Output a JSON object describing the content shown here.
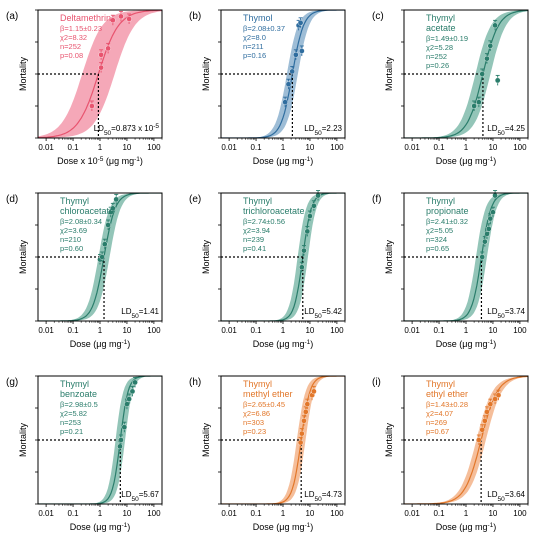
{
  "chart_data": [
    {
      "type": "scatter",
      "panel_label": "(a)",
      "name": "Deltamethrin",
      "color": "#e8546f",
      "band_color": "#f28ba0",
      "stats": [
        "β=1.15±0.23",
        "χ2=8.32",
        "n=252",
        "p=0.08"
      ],
      "ld50_label": "LD50=0.873 x 10-5",
      "ld50_value": 0.873,
      "slope": 1.15,
      "band_lo": [
        10,
        3
      ],
      "band_hi": [
        45,
        0.08
      ],
      "points": [
        [
          0.5,
          0.25
        ],
        [
          1.1,
          0.55
        ],
        [
          1.1,
          0.65
        ],
        [
          2,
          0.7
        ],
        [
          3,
          0.92
        ],
        [
          6,
          0.95
        ],
        [
          12,
          0.93
        ]
      ],
      "xlabel": "Dose x 10-5 (μg mg-1)",
      "ylabel": "Mortality",
      "xticks": [
        "0.01",
        "0.1",
        "1",
        "10",
        "100"
      ],
      "xlim": [
        0.005,
        200
      ],
      "ylim": [
        0,
        1
      ]
    },
    {
      "type": "scatter",
      "panel_label": "(b)",
      "name": "Thymol",
      "color": "#2f6d9f",
      "band_color": "#7da7c8",
      "stats": [
        "β=2.08±0.37",
        "χ2=8.0",
        "n=211",
        "p=0.16"
      ],
      "ld50_label": "LD50=2.23",
      "ld50_value": 2.23,
      "slope": 2.08,
      "band_lo": [
        3.2,
        0.6
      ],
      "band_hi": [
        7,
        0.3
      ],
      "points": [
        [
          1.2,
          0.28
        ],
        [
          1.6,
          0.42
        ],
        [
          2.2,
          0.52
        ],
        [
          3,
          0.65
        ],
        [
          3.8,
          0.88
        ],
        [
          4.5,
          0.9
        ],
        [
          5,
          0.68
        ]
      ],
      "xlabel": "Dose (μg mg-1)",
      "ylabel": "Mortality",
      "xticks": [
        "0.01",
        "0.1",
        "1",
        "10",
        "100"
      ],
      "xlim": [
        0.005,
        200
      ],
      "ylim": [
        0,
        1
      ]
    },
    {
      "type": "scatter",
      "panel_label": "(c)",
      "name": "Thymyl acetate",
      "name_lines": [
        "Thymyl",
        "acetate"
      ],
      "color": "#2a7d6b",
      "band_color": "#6fb2a0",
      "stats": [
        "β=1.49±0.19",
        "χ2=5.28",
        "n=252",
        "p=0.26"
      ],
      "ld50_label": "LD50=4.25",
      "ld50_value": 4.25,
      "slope": 1.49,
      "band_lo": [
        1.9,
        0.9
      ],
      "band_hi": [
        2.2,
        0.7
      ],
      "points": [
        [
          2,
          0.25
        ],
        [
          3,
          0.28
        ],
        [
          4,
          0.5
        ],
        [
          6,
          0.62
        ],
        [
          8,
          0.72
        ],
        [
          12,
          0.88
        ],
        [
          15,
          0.45
        ]
      ],
      "xlabel": "Dose (μg mg-1)",
      "ylabel": "Mortality",
      "xticks": [
        "0.01",
        "0.1",
        "1",
        "10",
        "100"
      ],
      "xlim": [
        0.005,
        200
      ],
      "ylim": [
        0,
        1
      ]
    },
    {
      "type": "scatter",
      "panel_label": "(d)",
      "name": "Thymyl chloroacetate",
      "name_lines": [
        "Thymyl",
        "chloroacetate"
      ],
      "color": "#2a7d6b",
      "band_color": "#6fb2a0",
      "stats": [
        "β=2.08±0.34",
        "χ2=3.69",
        "n=210",
        "p=0.60"
      ],
      "ld50_label": "LD50=1.41",
      "ld50_value": 1.41,
      "slope": 2.08,
      "band_lo": [
        2.5,
        0.6
      ],
      "band_hi": [
        6,
        0.35
      ],
      "points": [
        [
          1,
          0.48
        ],
        [
          1.2,
          0.5
        ],
        [
          1.5,
          0.6
        ],
        [
          2,
          0.75
        ],
        [
          2.5,
          0.85
        ],
        [
          3,
          0.88
        ],
        [
          4,
          0.95
        ]
      ],
      "xlabel": "Dose (μg mg-1)",
      "ylabel": "Mortality",
      "xticks": [
        "0.01",
        "0.1",
        "1",
        "10",
        "100"
      ],
      "xlim": [
        0.005,
        200
      ],
      "ylim": [
        0,
        1
      ]
    },
    {
      "type": "scatter",
      "panel_label": "(e)",
      "name": "Thymyl trichloroacetate",
      "name_lines": [
        "Thymyl",
        "trichloroacetate"
      ],
      "color": "#2a7d6b",
      "band_color": "#6fb2a0",
      "stats": [
        "β=2.74±0.56",
        "χ2=3.94",
        "n=239",
        "p=0.41"
      ],
      "ld50_label": "LD50=5.42",
      "ld50_value": 5.42,
      "slope": 2.74,
      "band_lo": [
        3.5,
        0.55
      ],
      "band_hi": [
        9,
        0.3
      ],
      "points": [
        [
          5,
          0.42
        ],
        [
          6,
          0.55
        ],
        [
          8,
          0.7
        ],
        [
          10,
          0.82
        ],
        [
          14,
          0.9
        ],
        [
          20,
          0.98
        ]
      ],
      "xlabel": "Dose (μg mg-1)",
      "ylabel": "Mortality",
      "xticks": [
        "0.01",
        "0.1",
        "1",
        "10",
        "100"
      ],
      "xlim": [
        0.005,
        200
      ],
      "ylim": [
        0,
        1
      ]
    },
    {
      "type": "scatter",
      "panel_label": "(f)",
      "name": "Thymyl propionate",
      "name_lines": [
        "Thymyl",
        "propionate"
      ],
      "color": "#2a7d6b",
      "band_color": "#6fb2a0",
      "stats": [
        "β=2.41±0.32",
        "χ2=5.05",
        "n=324",
        "p=0.65"
      ],
      "ld50_label": "LD50=3.74",
      "ld50_value": 3.74,
      "slope": 2.41,
      "band_lo": [
        3,
        0.6
      ],
      "band_hi": [
        6,
        0.35
      ],
      "points": [
        [
          4,
          0.5
        ],
        [
          5,
          0.62
        ],
        [
          6,
          0.68
        ],
        [
          7,
          0.72
        ],
        [
          8,
          0.8
        ],
        [
          10,
          0.85
        ],
        [
          12,
          0.98
        ]
      ],
      "xlabel": "Dose (μg mg-1)",
      "ylabel": "Mortality",
      "xticks": [
        "0.01",
        "0.1",
        "1",
        "10",
        "100"
      ],
      "xlim": [
        0.005,
        200
      ],
      "ylim": [
        0,
        1
      ]
    },
    {
      "type": "scatter",
      "panel_label": "(g)",
      "name": "Thymyl benzoate",
      "name_lines": [
        "Thymyl",
        "benzoate"
      ],
      "color": "#2a7d6b",
      "band_color": "#6fb2a0",
      "stats": [
        "β=2.98±0.5",
        "χ2=5.82",
        "n=253",
        "p=0.21"
      ],
      "ld50_label": "LD50=5.67",
      "ld50_value": 5.67,
      "slope": 2.98,
      "band_lo": [
        3.5,
        0.5
      ],
      "band_hi": [
        9,
        0.3
      ],
      "points": [
        [
          5.5,
          0.45
        ],
        [
          6,
          0.5
        ],
        [
          8,
          0.6
        ],
        [
          10,
          0.78
        ],
        [
          12,
          0.82
        ],
        [
          16,
          0.88
        ],
        [
          20,
          0.95
        ]
      ],
      "xlabel": "Dose (μg mg-1)",
      "ylabel": "Mortality",
      "xticks": [
        "0.01",
        "0.1",
        "1",
        "10",
        "100"
      ],
      "xlim": [
        0.005,
        200
      ],
      "ylim": [
        0,
        1
      ]
    },
    {
      "type": "scatter",
      "panel_label": "(h)",
      "name": "Thymyl methyl ether",
      "name_lines": [
        "Thymyl",
        "methyl ether"
      ],
      "color": "#e2772a",
      "band_color": "#f2a878",
      "stats": [
        "β=2.65±0.45",
        "χ2=6.86",
        "n=303",
        "p=0.23"
      ],
      "ld50_label": "LD50=4.73",
      "ld50_value": 4.73,
      "slope": 2.65,
      "band_lo": [
        5,
        0.45
      ],
      "band_hi": [
        18,
        0.25
      ],
      "points": [
        [
          4.5,
          0.48
        ],
        [
          5,
          0.55
        ],
        [
          6,
          0.65
        ],
        [
          7,
          0.72
        ],
        [
          8,
          0.78
        ],
        [
          12,
          0.85
        ],
        [
          14,
          0.88
        ]
      ],
      "xlabel": "Dose (μg mg-1)",
      "ylabel": "Mortality",
      "xticks": [
        "0.01",
        "0.1",
        "1",
        "10",
        "100"
      ],
      "xlim": [
        0.005,
        200
      ],
      "ylim": [
        0,
        1
      ]
    },
    {
      "type": "scatter",
      "panel_label": "(i)",
      "name": "Thymyl ethyl ether",
      "name_lines": [
        "Thymyl",
        "ethyl ether"
      ],
      "color": "#e2772a",
      "band_color": "#f2a878",
      "stats": [
        "β=1.43±0.28",
        "χ2=4.07",
        "n=269",
        "p=0.67"
      ],
      "ld50_label": "LD50=3.64",
      "ld50_value": 3.64,
      "slope": 1.43,
      "band_lo": [
        6,
        0.5
      ],
      "band_hi": [
        25,
        0.2
      ],
      "points": [
        [
          3,
          0.5
        ],
        [
          4,
          0.58
        ],
        [
          5,
          0.65
        ],
        [
          6,
          0.72
        ],
        [
          8,
          0.78
        ],
        [
          12,
          0.82
        ],
        [
          16,
          0.85
        ]
      ],
      "xlabel": "Dose (μg mg-1)",
      "ylabel": "Mortality",
      "xticks": [
        "0.01",
        "0.1",
        "1",
        "10",
        "100"
      ],
      "xlim": [
        0.005,
        200
      ],
      "ylim": [
        0,
        1
      ]
    }
  ]
}
